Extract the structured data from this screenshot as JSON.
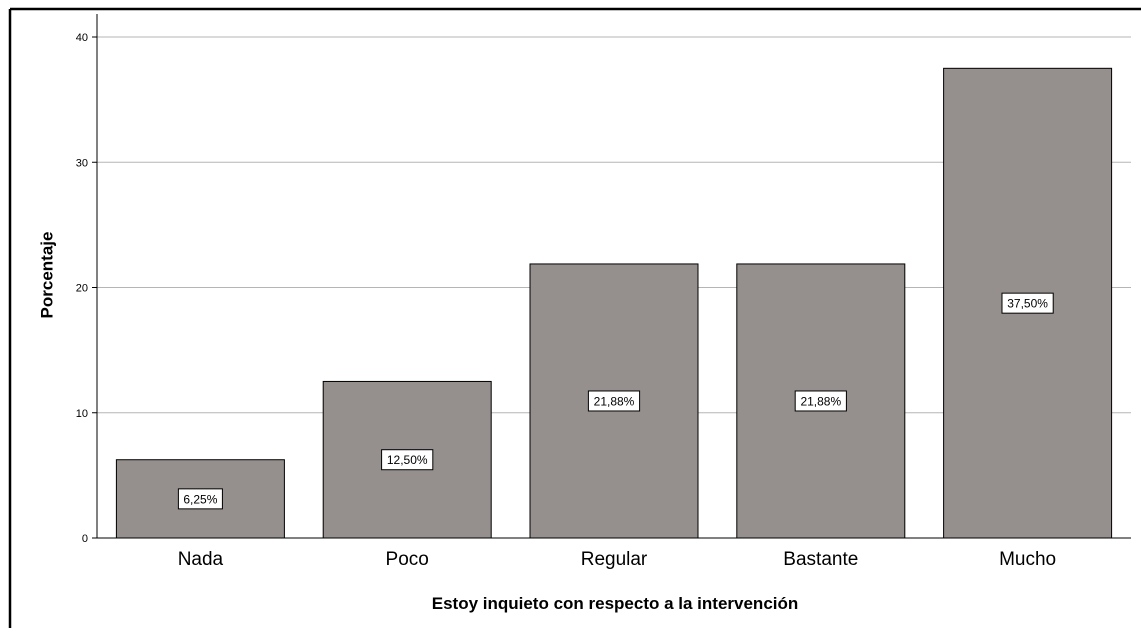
{
  "chart_data": {
    "type": "bar",
    "categories": [
      "Nada",
      "Poco",
      "Regular",
      "Bastante",
      "Mucho"
    ],
    "values": [
      6.25,
      12.5,
      21.88,
      21.88,
      37.5
    ],
    "data_labels": [
      "6,25%",
      "12,50%",
      "21,88%",
      "21,88%",
      "37,50%"
    ],
    "xlabel": "Estoy inquieto con respecto a la intervención",
    "ylabel": "Porcentaje",
    "ylim": [
      0,
      42
    ],
    "yticks": [
      0,
      10,
      20,
      30,
      40
    ],
    "ytick_labels": [
      "0",
      "10",
      "20",
      "30",
      "40"
    ],
    "grid": true,
    "colors": {
      "bar": "#958f8e",
      "bar_stroke": "#000000",
      "grid": "#b5b5b5"
    }
  }
}
